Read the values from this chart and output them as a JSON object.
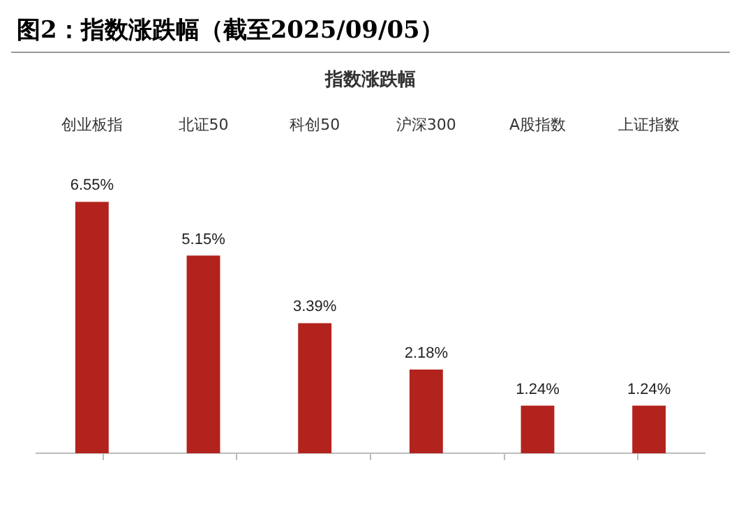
{
  "chart_data": {
    "type": "bar",
    "title": "图2：指数涨跌幅（截至2025/09/05）",
    "subtitle": "指数涨跌幅",
    "categories": [
      "创业板指",
      "北证50",
      "科创50",
      "沪深300",
      "A股指数",
      "上证指数"
    ],
    "values": [
      6.55,
      5.15,
      3.39,
      2.18,
      1.24,
      1.24
    ],
    "value_labels": [
      "6.55%",
      "5.15%",
      "3.39%",
      "2.18%",
      "1.24%",
      "1.24%"
    ],
    "color": "#b3231e",
    "grid": false,
    "legend": false
  }
}
